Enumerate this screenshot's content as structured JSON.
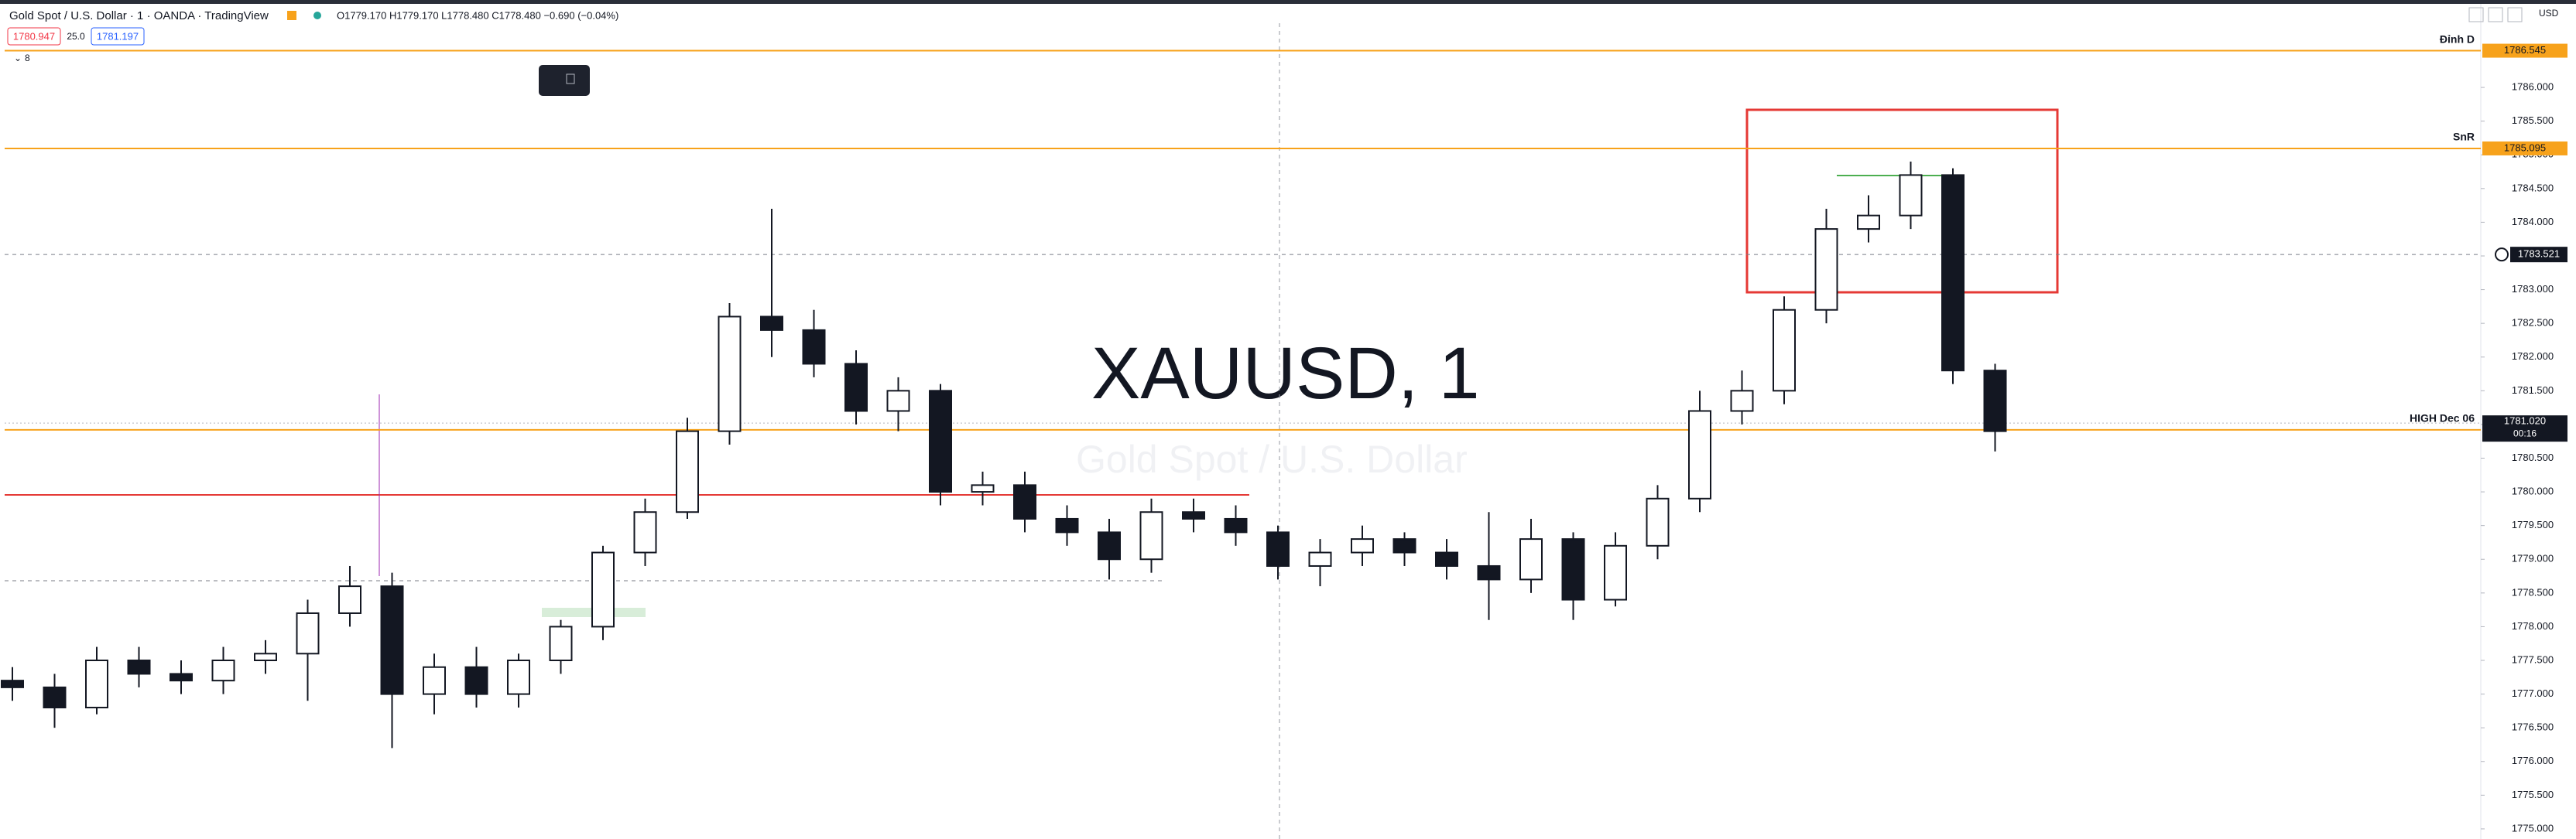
{
  "header": {
    "symbol": "Gold Spot / U.S. Dollar · 1 · OANDA · TradingView",
    "ohlc": "O1779.170 H1779.170 L1778.480 C1778.480 −0.690 (−0.04%)",
    "sell": "1780.947",
    "spread": "25.0",
    "buy": "1781.197",
    "indicators": "8",
    "currency": "USD"
  },
  "watermark": {
    "title": "XAUUSD, 1",
    "subtitle": "Gold Spot / U.S. Dollar"
  },
  "chart_data": {
    "type": "candlestick",
    "up_color": "#ffffff",
    "down_color": "#131722",
    "outline": "#131722",
    "categories": [
      null,
      null,
      null,
      null,
      null,
      null,
      null,
      null,
      null,
      null,
      null,
      null,
      null,
      null,
      null,
      null,
      null,
      null,
      null,
      null,
      null,
      null,
      null,
      null,
      null,
      null,
      null,
      null,
      null,
      null,
      null,
      null,
      null,
      null,
      null,
      null,
      null,
      null,
      null,
      null,
      null,
      null,
      null,
      null,
      null,
      null,
      null,
      null
    ],
    "open": [
      1777.2,
      1777.1,
      1776.8,
      1777.5,
      1777.3,
      1777.2,
      1777.5,
      1777.6,
      1778.2,
      1778.6,
      1777.0,
      1777.4,
      1777.0,
      1777.5,
      1778.0,
      1779.1,
      1779.7,
      1780.9,
      1782.6,
      1782.4,
      1781.9,
      1781.2,
      1781.5,
      1780.0,
      1780.1,
      1779.6,
      1779.4,
      1779.0,
      1779.7,
      1779.6,
      1779.4,
      1778.9,
      1779.1,
      1779.3,
      1779.1,
      1778.9,
      1778.7,
      1779.3,
      1778.4,
      1779.2,
      1779.9,
      1781.2,
      1781.5,
      1782.7,
      1783.9,
      1784.1,
      1784.7,
      1781.8
    ],
    "high": [
      1777.4,
      1777.3,
      1777.7,
      1777.7,
      1777.5,
      1777.7,
      1777.8,
      1778.4,
      1778.9,
      1778.8,
      1777.6,
      1777.7,
      1777.6,
      1778.1,
      1779.2,
      1779.9,
      1781.1,
      1782.8,
      1784.2,
      1782.7,
      1782.1,
      1781.7,
      1781.6,
      1780.3,
      1780.3,
      1779.8,
      1779.6,
      1779.9,
      1779.9,
      1779.8,
      1779.5,
      1779.3,
      1779.5,
      1779.4,
      1779.3,
      1779.7,
      1779.6,
      1779.4,
      1779.4,
      1780.1,
      1781.5,
      1781.8,
      1782.9,
      1784.2,
      1784.4,
      1784.9,
      1784.8,
      1781.9
    ],
    "low": [
      1776.9,
      1776.5,
      1776.7,
      1777.1,
      1777.0,
      1777.0,
      1777.3,
      1776.9,
      1778.0,
      1776.2,
      1776.7,
      1776.8,
      1776.8,
      1777.3,
      1777.8,
      1778.9,
      1779.6,
      1780.7,
      1782.0,
      1781.7,
      1781.0,
      1780.9,
      1779.8,
      1779.8,
      1779.4,
      1779.2,
      1778.7,
      1778.8,
      1779.4,
      1779.2,
      1778.7,
      1778.6,
      1778.9,
      1778.9,
      1778.7,
      1778.1,
      1778.5,
      1778.1,
      1778.3,
      1779.0,
      1779.7,
      1781.0,
      1781.3,
      1782.5,
      1783.7,
      1783.9,
      1781.6,
      1780.6
    ],
    "close": [
      1777.1,
      1776.8,
      1777.5,
      1777.3,
      1777.2,
      1777.5,
      1777.6,
      1778.2,
      1778.6,
      1777.0,
      1777.4,
      1777.0,
      1777.5,
      1778.0,
      1779.1,
      1779.7,
      1780.9,
      1782.6,
      1782.4,
      1781.9,
      1781.2,
      1781.5,
      1780.0,
      1780.1,
      1779.6,
      1779.4,
      1779.0,
      1779.7,
      1779.6,
      1779.4,
      1778.9,
      1779.1,
      1779.3,
      1779.1,
      1778.9,
      1778.7,
      1779.3,
      1778.4,
      1779.2,
      1779.9,
      1781.2,
      1781.5,
      1782.7,
      1783.9,
      1784.1,
      1784.7,
      1781.8,
      1780.9
    ],
    "ylim": [
      1774.85,
      1786.93
    ],
    "yticks": [
      {
        "value": 1775,
        "label": "1775.000"
      },
      {
        "value": 1775.5,
        "label": "1775.500"
      },
      {
        "value": 1776,
        "label": "1776.000"
      },
      {
        "value": 1776.5,
        "label": "1776.500"
      },
      {
        "value": 1777,
        "label": "1777.000"
      },
      {
        "value": 1777.5,
        "label": "1777.500"
      },
      {
        "value": 1778,
        "label": "1778.000"
      },
      {
        "value": 1778.5,
        "label": "1778.500"
      },
      {
        "value": 1779,
        "label": "1779.000"
      },
      {
        "value": 1779.5,
        "label": "1779.500"
      },
      {
        "value": 1780,
        "label": "1780.000"
      },
      {
        "value": 1780.5,
        "label": "1780.500"
      },
      {
        "value": 1781,
        "label": "1781.000"
      },
      {
        "value": 1781.5,
        "label": "1781.500"
      },
      {
        "value": 1782,
        "label": "1782.000"
      },
      {
        "value": 1782.5,
        "label": "1782.500"
      },
      {
        "value": 1783,
        "label": "1783.000"
      },
      {
        "value": 1783.5,
        "label": "1783.500"
      },
      {
        "value": 1784,
        "label": "1784.000"
      },
      {
        "value": 1784.5,
        "label": "1784.500"
      },
      {
        "value": 1785,
        "label": "1785.000"
      },
      {
        "value": 1785.5,
        "label": "1785.500"
      },
      {
        "value": 1786,
        "label": "1786.000"
      }
    ],
    "hlines": [
      {
        "name": "Đỉnh D",
        "value": 1786.545,
        "color": "#f7a21b"
      },
      {
        "name": "SnR",
        "value": 1785.095,
        "color": "#f7a21b"
      },
      {
        "name": "HIGH Dec 06",
        "value": 1780.92,
        "label": "1780.920",
        "color": "#f7a21b"
      }
    ],
    "price_marker": {
      "value": 1783.521,
      "color": "#131722"
    },
    "last_price": {
      "value": 1781.02,
      "label": "1781.020",
      "countdown": "00:16",
      "color": "#131722"
    }
  }
}
